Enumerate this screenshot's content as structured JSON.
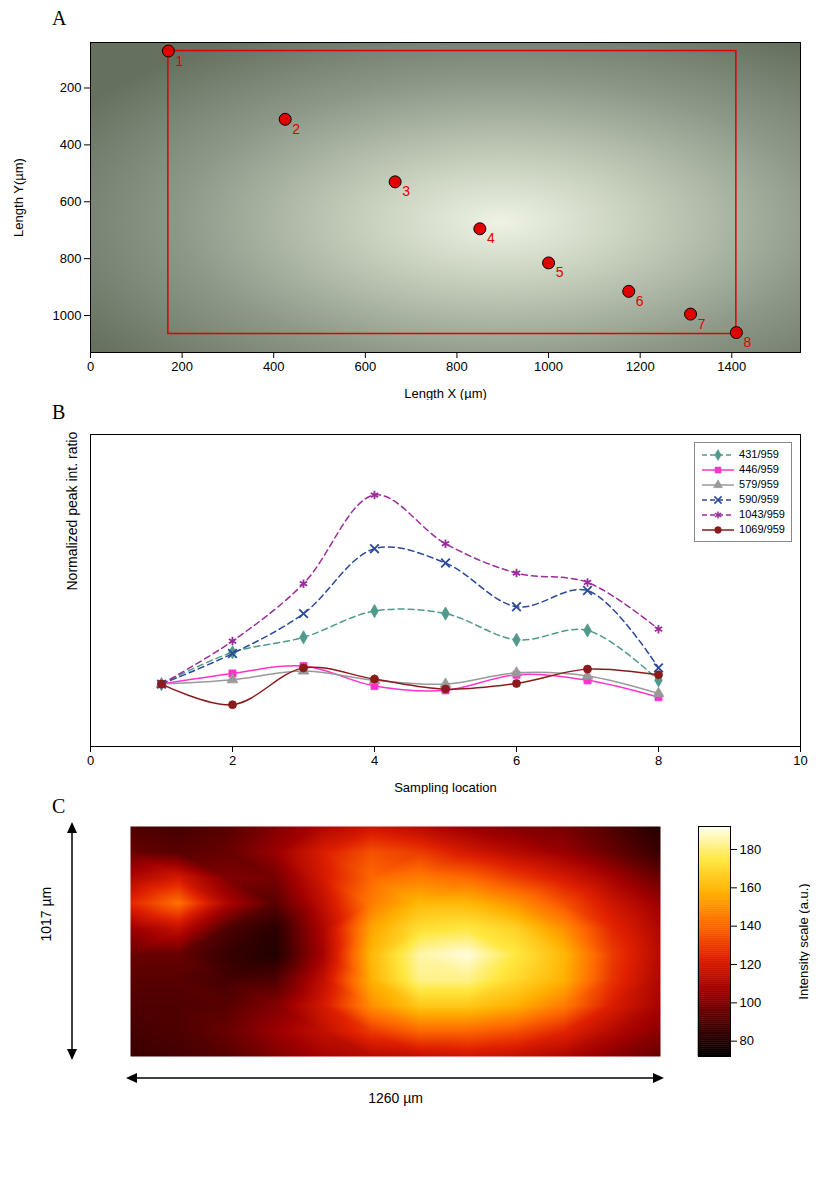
{
  "chart_data": [
    {
      "panel": "A",
      "type": "scatter",
      "xlabel": "Length X (µm)",
      "ylabel": "Length Y(µm)",
      "x": [
        170,
        425,
        665,
        850,
        1000,
        1175,
        1310,
        1410
      ],
      "y": [
        70,
        310,
        530,
        695,
        815,
        915,
        995,
        1060
      ],
      "point_labels": [
        "1",
        "2",
        "3",
        "4",
        "5",
        "6",
        "7",
        "8"
      ],
      "color": "#e00000",
      "region": {
        "x": [
          170,
          1410
        ],
        "y": [
          70,
          1065
        ]
      },
      "xlim": [
        0,
        1550
      ],
      "ylim": [
        1130,
        40
      ],
      "xticks": [
        0,
        200,
        400,
        600,
        800,
        1000,
        1200,
        1400
      ],
      "yticks": [
        200,
        400,
        600,
        800,
        1000
      ]
    },
    {
      "panel": "B",
      "type": "line",
      "xlabel": "Sampling location",
      "ylabel": "Normalized peak int. ratio",
      "x": [
        1,
        2,
        3,
        4,
        5,
        6,
        7,
        8
      ],
      "series": [
        {
          "name": "431/959",
          "color": "#4f9a8c",
          "marker": "diamond",
          "line_style": "dashed",
          "values": [
            1.0,
            1.51,
            1.75,
            2.17,
            2.13,
            1.71,
            1.86,
            1.06
          ]
        },
        {
          "name": "446/959",
          "color": "#ff33cc",
          "marker": "square",
          "line_style": "solid",
          "values": [
            1.0,
            1.17,
            1.29,
            0.97,
            0.9,
            1.15,
            1.06,
            0.79
          ]
        },
        {
          "name": "579/959",
          "color": "#999999",
          "marker": "triangle",
          "line_style": "solid",
          "values": [
            1.0,
            1.07,
            1.21,
            1.06,
            1.0,
            1.18,
            1.13,
            0.85
          ]
        },
        {
          "name": "590/959",
          "color": "#2c4a9a",
          "marker": "times",
          "line_style": "dashed",
          "values": [
            1.0,
            1.49,
            2.13,
            3.17,
            2.94,
            2.24,
            2.5,
            1.26
          ]
        },
        {
          "name": "1043/959",
          "color": "#9b2d9b",
          "marker": "asterisk",
          "line_style": "dashed",
          "values": [
            1.0,
            1.69,
            2.61,
            4.03,
            3.25,
            2.78,
            2.63,
            1.88
          ]
        },
        {
          "name": "1069/959",
          "color": "#8b1a1a",
          "marker": "circle",
          "line_style": "solid",
          "values": [
            1.0,
            0.67,
            1.26,
            1.08,
            0.92,
            1.01,
            1.24,
            1.15
          ]
        }
      ],
      "xlim": [
        0,
        10
      ],
      "xticks": [
        0,
        2,
        4,
        6,
        8,
        10
      ],
      "ylim": [
        0,
        5
      ],
      "tick_labels": "x",
      "legend": "upper right"
    },
    {
      "panel": "C",
      "type": "heatmap",
      "xlabel": "1260 µm",
      "ylabel": "1017 µm",
      "tick_labels": false,
      "cells": [
        [
          90,
          88,
          92,
          100,
          110,
          118,
          112,
          105,
          100,
          98,
          90,
          80
        ],
        [
          95,
          92,
          95,
          105,
          122,
          135,
          130,
          120,
          112,
          105,
          95,
          85
        ],
        [
          110,
          120,
          100,
          98,
          120,
          140,
          145,
          140,
          130,
          120,
          108,
          95
        ],
        [
          125,
          142,
          110,
          92,
          115,
          145,
          160,
          160,
          150,
          135,
          118,
          105
        ],
        [
          105,
          115,
          90,
          82,
          110,
          155,
          172,
          175,
          168,
          150,
          125,
          110
        ],
        [
          95,
          95,
          85,
          80,
          108,
          160,
          185,
          190,
          175,
          160,
          130,
          112
        ],
        [
          92,
          92,
          88,
          90,
          115,
          158,
          182,
          182,
          170,
          158,
          128,
          110
        ],
        [
          90,
          90,
          92,
          100,
          120,
          150,
          165,
          165,
          158,
          145,
          122,
          108
        ],
        [
          88,
          90,
          95,
          105,
          115,
          130,
          140,
          140,
          135,
          125,
          112,
          102
        ],
        [
          85,
          88,
          92,
          100,
          108,
          112,
          115,
          118,
          115,
          110,
          102,
          95
        ]
      ],
      "colorbar": {
        "label": "Intensity scale (a.u.)",
        "range": [
          72,
          192
        ],
        "ticks": [
          80,
          100,
          120,
          140,
          160,
          180
        ]
      }
    }
  ]
}
